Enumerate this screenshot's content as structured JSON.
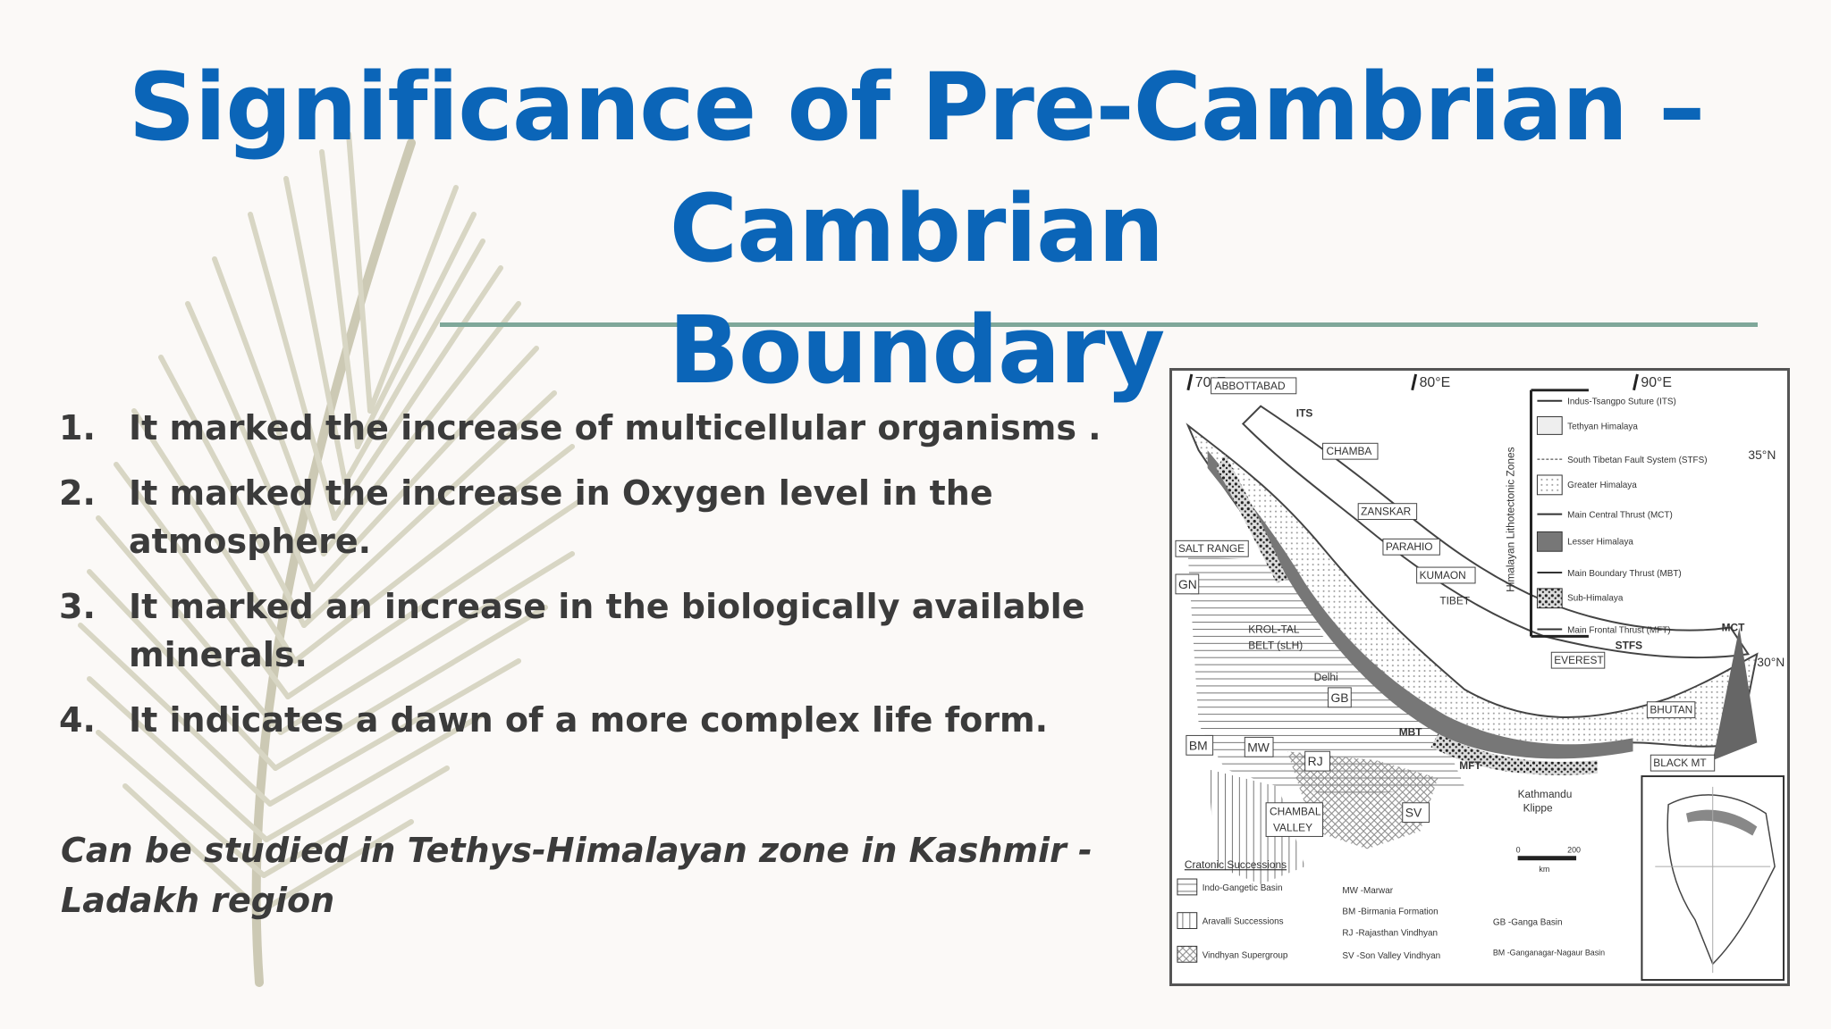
{
  "slide": {
    "title_line1": "Significance of Pre-Cambrian – Cambrian",
    "title_line2": "Boundary",
    "points": [
      {
        "num": "1.",
        "text": "It marked the increase of multicellular organisms ."
      },
      {
        "num": "2.",
        "text": "It marked  the increase in Oxygen level in the atmosphere."
      },
      {
        "num": "3.",
        "text": "It marked an increase in the biologically available minerals."
      },
      {
        "num": "4.",
        "text": "It indicates a dawn of a more complex life form."
      }
    ],
    "note": "Can be studied in Tethys-Himalayan zone in Kashmir - Ladakh region"
  },
  "map": {
    "longitudes": [
      "70°E",
      "80°E",
      "90°E"
    ],
    "latitudes": [
      "35°N",
      "30°N"
    ],
    "places": {
      "abbottabad": "ABBOTTABAD",
      "its": "ITS",
      "chamba": "CHAMBA",
      "zanskar": "ZANSKAR",
      "parahio": "PARAHIO",
      "kumaon": "KUMAON",
      "tibet": "TIBET",
      "salt_range": "SALT RANGE",
      "gn": "GN",
      "krol_tal_1": "KROL-TAL",
      "krol_tal_2": "BELT (sLH)",
      "delhi": "Delhi",
      "gb": "GB",
      "everest": "EVEREST",
      "stfs": "STFS",
      "mct": "MCT",
      "bhutan": "BHUTAN",
      "mbt": "MBT",
      "mft": "MFT",
      "black_mt": "BLACK MT",
      "bm": "BM",
      "mw": "MW",
      "rj": "RJ",
      "sv": "SV",
      "chambal_1": "CHAMBAL",
      "chambal_2": "VALLEY",
      "kathmandu_1": "Kathmandu",
      "kathmandu_2": "Klippe",
      "zones_axis": "Himalayan Lithotectonic Zones"
    },
    "legend": [
      "Indus-Tsangpo Suture (ITS)",
      "Tethyan Himalaya",
      "South Tibetan Fault System (STFS)",
      "Greater Himalaya",
      "Main Central Thrust (MCT)",
      "Lesser Himalaya",
      "Main Boundary Thrust (MBT)",
      "Sub-Himalaya",
      "Main Frontal Thrust (MFT)"
    ],
    "scale": {
      "zero": "0",
      "max": "200",
      "unit": "km"
    },
    "cratonic": {
      "heading": "Cratonic Successions",
      "items": [
        "Indo-Gangetic Basin",
        "Aravalli Successions",
        "Vindhyan Supergroup"
      ],
      "abbrevs": [
        "MW -Marwar",
        "BM -Birmania Formation",
        "RJ -Rajasthan Vindhyan",
        "SV -Son Valley Vindhyan",
        "GB -Ganga Basin",
        "BM -Ganganagar-Nagaur Basin"
      ]
    }
  }
}
